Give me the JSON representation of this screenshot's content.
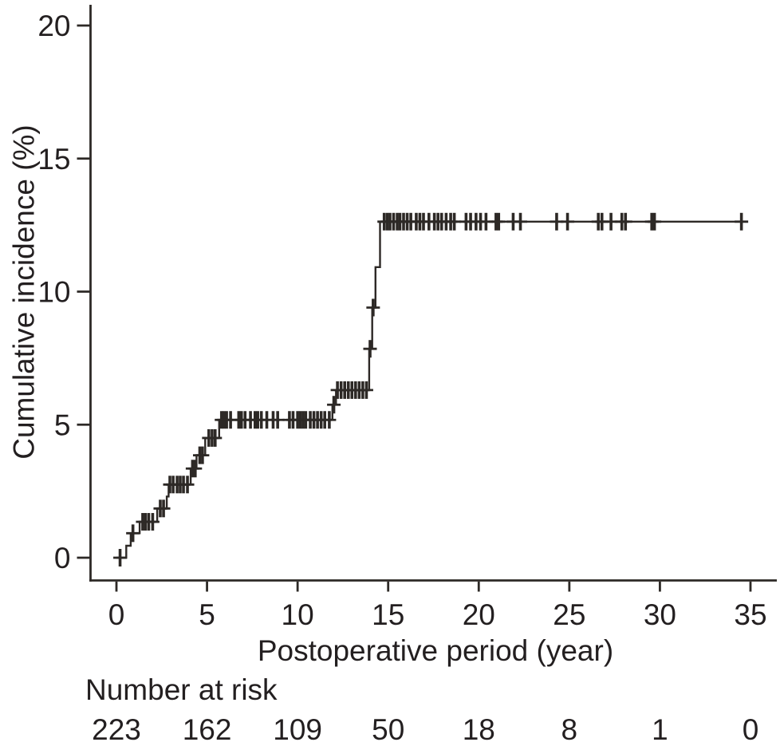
{
  "style": {
    "background": "#ffffff",
    "line_color": "#2d2926",
    "text_color": "#231f20"
  },
  "chart_data": {
    "type": "line",
    "subtype": "kaplan-meier-cumulative-incidence-step",
    "title": "",
    "xlabel": "Postoperative period (year)",
    "ylabel": "Cumulative incidence (%)",
    "xlim": [
      0,
      36.5
    ],
    "ylim": [
      0,
      21
    ],
    "x_ticks": [
      0,
      5,
      10,
      15,
      20,
      25,
      30,
      35
    ],
    "y_ticks": [
      0,
      5,
      10,
      15,
      20
    ],
    "grid": false,
    "legend": false,
    "series": [
      {
        "name": "Cumulative incidence",
        "curve_start": 0.0,
        "curve_end": 34.62,
        "steps": [
          [
            0.54,
            0.45
          ],
          [
            0.79,
            0.92
          ],
          [
            1.28,
            1.35
          ],
          [
            2.25,
            1.85
          ],
          [
            2.78,
            2.3
          ],
          [
            2.88,
            2.75
          ],
          [
            4.1,
            3.35
          ],
          [
            4.42,
            3.85
          ],
          [
            4.9,
            4.5
          ],
          [
            5.67,
            5.18
          ],
          [
            11.92,
            5.75
          ],
          [
            12.12,
            6.3
          ],
          [
            13.95,
            7.85
          ],
          [
            14.12,
            9.4
          ],
          [
            14.3,
            10.92
          ],
          [
            14.55,
            12.63
          ]
        ],
        "censor_marks": [
          [
            0.2,
            0
          ],
          [
            0.91,
            0.92
          ],
          [
            1.45,
            1.35
          ],
          [
            1.6,
            1.35
          ],
          [
            1.78,
            1.35
          ],
          [
            2.0,
            1.35
          ],
          [
            2.42,
            1.85
          ],
          [
            2.6,
            1.85
          ],
          [
            2.95,
            2.75
          ],
          [
            3.13,
            2.75
          ],
          [
            3.35,
            2.75
          ],
          [
            3.52,
            2.75
          ],
          [
            3.7,
            2.75
          ],
          [
            3.92,
            2.75
          ],
          [
            4.2,
            3.35
          ],
          [
            4.35,
            3.35
          ],
          [
            4.6,
            3.85
          ],
          [
            4.75,
            3.85
          ],
          [
            5.1,
            4.5
          ],
          [
            5.28,
            4.5
          ],
          [
            5.45,
            4.5
          ],
          [
            5.8,
            5.18
          ],
          [
            5.93,
            5.18
          ],
          [
            6.08,
            5.18
          ],
          [
            6.3,
            5.18
          ],
          [
            6.75,
            5.18
          ],
          [
            6.9,
            5.18
          ],
          [
            7.1,
            5.18
          ],
          [
            7.4,
            5.18
          ],
          [
            7.65,
            5.18
          ],
          [
            7.8,
            5.18
          ],
          [
            8.0,
            5.18
          ],
          [
            8.3,
            5.18
          ],
          [
            8.65,
            5.18
          ],
          [
            8.9,
            5.18
          ],
          [
            9.55,
            5.18
          ],
          [
            9.75,
            5.18
          ],
          [
            10.0,
            5.18
          ],
          [
            10.15,
            5.18
          ],
          [
            10.3,
            5.18
          ],
          [
            10.45,
            5.18
          ],
          [
            10.7,
            5.18
          ],
          [
            10.9,
            5.18
          ],
          [
            11.1,
            5.18
          ],
          [
            11.3,
            5.18
          ],
          [
            11.5,
            5.18
          ],
          [
            11.75,
            5.18
          ],
          [
            12.0,
            5.75
          ],
          [
            12.2,
            6.3
          ],
          [
            12.4,
            6.3
          ],
          [
            12.6,
            6.3
          ],
          [
            12.8,
            6.3
          ],
          [
            13.0,
            6.3
          ],
          [
            13.2,
            6.3
          ],
          [
            13.4,
            6.3
          ],
          [
            13.6,
            6.3
          ],
          [
            13.8,
            6.3
          ],
          [
            14.0,
            7.85
          ],
          [
            14.17,
            9.4
          ],
          [
            14.78,
            12.63
          ],
          [
            14.95,
            12.63
          ],
          [
            15.1,
            12.63
          ],
          [
            15.3,
            12.63
          ],
          [
            15.5,
            12.63
          ],
          [
            15.65,
            12.63
          ],
          [
            15.85,
            12.63
          ],
          [
            16.05,
            12.63
          ],
          [
            16.25,
            12.63
          ],
          [
            16.55,
            12.63
          ],
          [
            16.75,
            12.63
          ],
          [
            16.95,
            12.63
          ],
          [
            17.25,
            12.63
          ],
          [
            17.55,
            12.63
          ],
          [
            17.75,
            12.63
          ],
          [
            17.95,
            12.63
          ],
          [
            18.2,
            12.63
          ],
          [
            18.45,
            12.63
          ],
          [
            18.65,
            12.63
          ],
          [
            19.3,
            12.63
          ],
          [
            19.55,
            12.63
          ],
          [
            19.85,
            12.63
          ],
          [
            20.1,
            12.63
          ],
          [
            20.4,
            12.63
          ],
          [
            20.95,
            12.63
          ],
          [
            21.1,
            12.63
          ],
          [
            21.9,
            12.63
          ],
          [
            22.3,
            12.63
          ],
          [
            24.3,
            12.63
          ],
          [
            24.9,
            12.63
          ],
          [
            26.6,
            12.63
          ],
          [
            26.8,
            12.63
          ],
          [
            27.3,
            12.63
          ],
          [
            27.9,
            12.63
          ],
          [
            28.1,
            12.63
          ],
          [
            29.55,
            12.63
          ],
          [
            29.7,
            12.63
          ],
          [
            34.5,
            12.63
          ]
        ]
      }
    ],
    "number_at_risk": {
      "label": "Number at risk",
      "times": [
        0,
        5,
        10,
        15,
        20,
        25,
        30,
        35
      ],
      "counts": [
        223,
        162,
        109,
        50,
        18,
        8,
        1,
        0
      ]
    }
  }
}
